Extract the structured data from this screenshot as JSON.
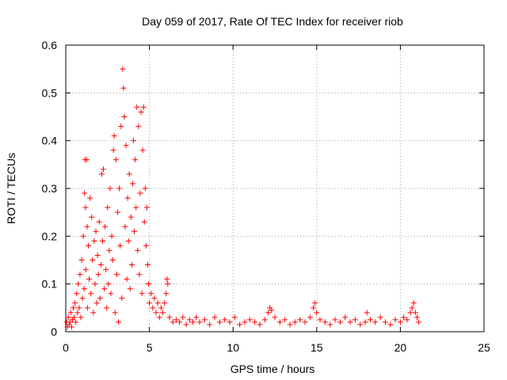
{
  "chart_data": {
    "type": "scatter",
    "title": "Day 059 of 2017, Rate Of TEC Index for receiver riob",
    "xlabel": "GPS time / hours",
    "ylabel": "ROTI / TECUs",
    "xlim": [
      0,
      25
    ],
    "ylim": [
      0,
      0.6
    ],
    "xticks": [
      0,
      5,
      10,
      15,
      20,
      25
    ],
    "xtick_labels": [
      "0",
      "5",
      "10",
      "15",
      "20",
      "25"
    ],
    "yticks": [
      0,
      0.1,
      0.2,
      0.3,
      0.4,
      0.5,
      0.6
    ],
    "ytick_labels": [
      "0",
      "0.1",
      "0.2",
      "0.3",
      "0.4",
      "0.5",
      "0.6"
    ],
    "grid": true,
    "marker": "+",
    "series_color": "#ff0000",
    "series": [
      {
        "name": "ROTI",
        "points": [
          [
            0.05,
            0.02
          ],
          [
            0.1,
            0.01
          ],
          [
            0.15,
            0.03
          ],
          [
            0.2,
            0.015
          ],
          [
            0.25,
            0.02
          ],
          [
            0.3,
            0.04
          ],
          [
            0.35,
            0.01
          ],
          [
            0.4,
            0.025
          ],
          [
            0.45,
            0.05
          ],
          [
            0.5,
            0.03
          ],
          [
            0.55,
            0.06
          ],
          [
            0.6,
            0.02
          ],
          [
            0.65,
            0.08
          ],
          [
            0.7,
            0.04
          ],
          [
            0.75,
            0.1
          ],
          [
            0.8,
            0.05
          ],
          [
            0.85,
            0.12
          ],
          [
            0.9,
            0.03
          ],
          [
            0.95,
            0.15
          ],
          [
            1.0,
            0.07
          ],
          [
            1.05,
            0.2
          ],
          [
            1.1,
            0.09
          ],
          [
            1.12,
            0.29
          ],
          [
            1.15,
            0.36
          ],
          [
            1.18,
            0.26
          ],
          [
            1.2,
            0.13
          ],
          [
            1.25,
            0.36
          ],
          [
            1.28,
            0.22
          ],
          [
            1.3,
            0.05
          ],
          [
            1.35,
            0.18
          ],
          [
            1.4,
            0.11
          ],
          [
            1.45,
            0.28
          ],
          [
            1.5,
            0.08
          ],
          [
            1.55,
            0.24
          ],
          [
            1.6,
            0.15
          ],
          [
            1.65,
            0.04
          ],
          [
            1.7,
            0.19
          ],
          [
            1.75,
            0.1
          ],
          [
            1.8,
            0.21
          ],
          [
            1.85,
            0.06
          ],
          [
            1.9,
            0.16
          ],
          [
            1.95,
            0.12
          ],
          [
            2.0,
            0.23
          ],
          [
            2.05,
            0.07
          ],
          [
            2.1,
            0.14
          ],
          [
            2.15,
            0.33
          ],
          [
            2.2,
            0.19
          ],
          [
            2.25,
            0.34
          ],
          [
            2.3,
            0.09
          ],
          [
            2.35,
            0.22
          ],
          [
            2.4,
            0.13
          ],
          [
            2.45,
            0.05
          ],
          [
            2.5,
            0.26
          ],
          [
            2.55,
            0.1
          ],
          [
            2.6,
            0.17
          ],
          [
            2.65,
            0.3
          ],
          [
            2.7,
            0.08
          ],
          [
            2.75,
            0.2
          ],
          [
            2.8,
            0.15
          ],
          [
            2.85,
            0.38
          ],
          [
            2.9,
            0.41
          ],
          [
            2.95,
            0.04
          ],
          [
            3.0,
            0.36
          ],
          [
            3.05,
            0.12
          ],
          [
            3.1,
            0.25
          ],
          [
            3.15,
            0.02
          ],
          [
            3.2,
            0.3
          ],
          [
            3.25,
            0.18
          ],
          [
            3.3,
            0.43
          ],
          [
            3.35,
            0.07
          ],
          [
            3.4,
            0.55
          ],
          [
            3.45,
            0.51
          ],
          [
            3.5,
            0.45
          ],
          [
            3.55,
            0.22
          ],
          [
            3.6,
            0.39
          ],
          [
            3.65,
            0.11
          ],
          [
            3.7,
            0.28
          ],
          [
            3.75,
            0.19
          ],
          [
            3.8,
            0.33
          ],
          [
            3.85,
            0.09
          ],
          [
            3.9,
            0.24
          ],
          [
            3.95,
            0.14
          ],
          [
            4.0,
            0.31
          ],
          [
            4.05,
            0.4
          ],
          [
            4.1,
            0.21
          ],
          [
            4.15,
            0.36
          ],
          [
            4.2,
            0.26
          ],
          [
            4.25,
            0.47
          ],
          [
            4.3,
            0.17
          ],
          [
            4.35,
            0.43
          ],
          [
            4.4,
            0.12
          ],
          [
            4.45,
            0.29
          ],
          [
            4.5,
            0.46
          ],
          [
            4.55,
            0.08
          ],
          [
            4.6,
            0.38
          ],
          [
            4.65,
            0.47
          ],
          [
            4.7,
            0.23
          ],
          [
            4.75,
            0.3
          ],
          [
            4.8,
            0.18
          ],
          [
            4.85,
            0.26
          ],
          [
            4.9,
            0.14
          ],
          [
            4.95,
            0.1
          ],
          [
            5.0,
            0.06
          ],
          [
            5.1,
            0.08
          ],
          [
            5.2,
            0.05
          ],
          [
            5.3,
            0.07
          ],
          [
            5.4,
            0.04
          ],
          [
            5.5,
            0.06
          ],
          [
            5.6,
            0.03
          ],
          [
            5.7,
            0.05
          ],
          [
            5.8,
            0.04
          ],
          [
            5.9,
            0.06
          ],
          [
            6.0,
            0.08
          ],
          [
            6.05,
            0.11
          ],
          [
            6.1,
            0.1
          ],
          [
            6.2,
            0.03
          ],
          [
            6.4,
            0.02
          ],
          [
            6.6,
            0.025
          ],
          [
            6.8,
            0.02
          ],
          [
            7.0,
            0.03
          ],
          [
            7.2,
            0.015
          ],
          [
            7.4,
            0.025
          ],
          [
            7.6,
            0.02
          ],
          [
            7.8,
            0.03
          ],
          [
            8.0,
            0.02
          ],
          [
            8.3,
            0.025
          ],
          [
            8.6,
            0.015
          ],
          [
            8.9,
            0.03
          ],
          [
            9.2,
            0.02
          ],
          [
            9.5,
            0.025
          ],
          [
            9.8,
            0.02
          ],
          [
            10.1,
            0.03
          ],
          [
            10.4,
            0.015
          ],
          [
            10.7,
            0.02
          ],
          [
            11.0,
            0.025
          ],
          [
            11.3,
            0.02
          ],
          [
            11.6,
            0.015
          ],
          [
            11.9,
            0.025
          ],
          [
            12.1,
            0.04
          ],
          [
            12.2,
            0.05
          ],
          [
            12.3,
            0.045
          ],
          [
            12.5,
            0.03
          ],
          [
            12.8,
            0.02
          ],
          [
            13.1,
            0.025
          ],
          [
            13.4,
            0.015
          ],
          [
            13.7,
            0.02
          ],
          [
            14.0,
            0.025
          ],
          [
            14.3,
            0.02
          ],
          [
            14.6,
            0.03
          ],
          [
            14.8,
            0.05
          ],
          [
            14.9,
            0.06
          ],
          [
            15.0,
            0.04
          ],
          [
            15.2,
            0.025
          ],
          [
            15.5,
            0.02
          ],
          [
            15.8,
            0.015
          ],
          [
            16.1,
            0.025
          ],
          [
            16.4,
            0.02
          ],
          [
            16.7,
            0.03
          ],
          [
            17.0,
            0.02
          ],
          [
            17.3,
            0.025
          ],
          [
            17.6,
            0.015
          ],
          [
            17.9,
            0.02
          ],
          [
            18.0,
            0.04
          ],
          [
            18.2,
            0.025
          ],
          [
            18.5,
            0.02
          ],
          [
            18.8,
            0.03
          ],
          [
            19.1,
            0.02
          ],
          [
            19.4,
            0.015
          ],
          [
            19.7,
            0.025
          ],
          [
            20.0,
            0.02
          ],
          [
            20.2,
            0.03
          ],
          [
            20.4,
            0.025
          ],
          [
            20.6,
            0.04
          ],
          [
            20.7,
            0.05
          ],
          [
            20.8,
            0.06
          ],
          [
            20.9,
            0.04
          ],
          [
            21.0,
            0.03
          ],
          [
            21.1,
            0.02
          ]
        ]
      }
    ]
  }
}
